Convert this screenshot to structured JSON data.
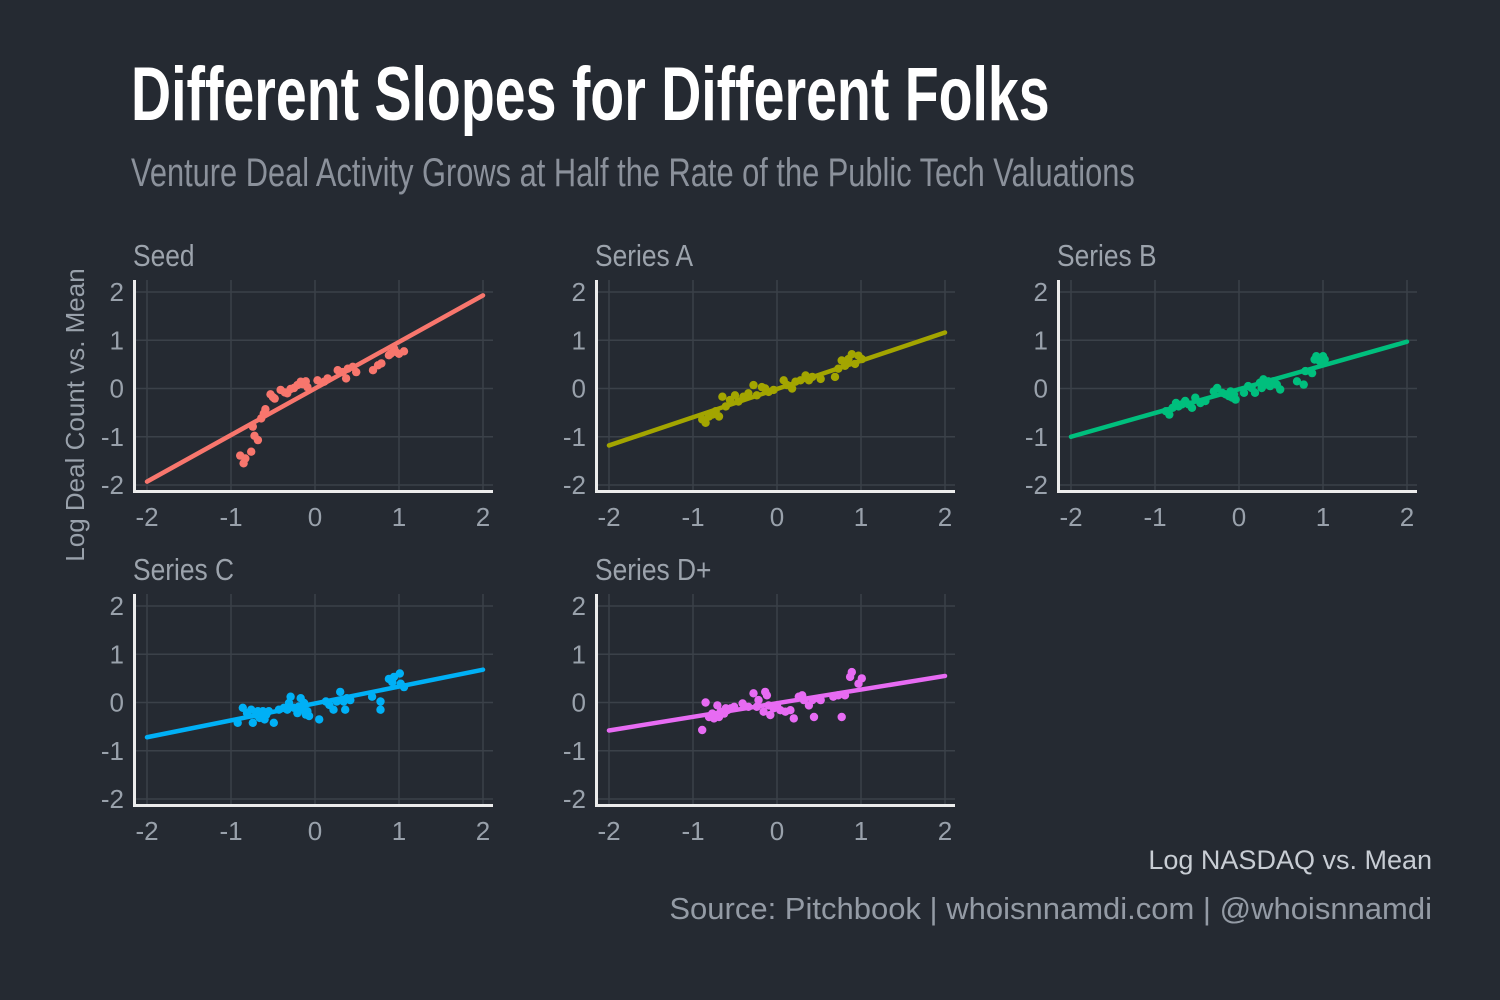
{
  "header": {
    "title": "Different Slopes for Different Folks",
    "subtitle": "Venture Deal Activity Grows at Half the Rate of the Public Tech Valuations"
  },
  "ylabel": "Log Deal Count vs. Mean",
  "footer": {
    "xlabel": "Log NASDAQ vs. Mean",
    "caption": "Source: Pitchbook | whoisnnamdi.com | @whoisnnamdi"
  },
  "theme": {
    "background": "#252A32",
    "grid": "#3B4149",
    "axis": "#ECECEC",
    "tick_label": "#99A1AB",
    "panel_title": "#9CA3AC",
    "title_color": "#FFFFFF",
    "subtitle_color": "#8B919B"
  },
  "chart_data": [
    {
      "type": "scatter",
      "name": "Seed",
      "color": "#F8766D",
      "xlim": [
        -2,
        2
      ],
      "ylim": [
        -2,
        2
      ],
      "xticks": [
        -2,
        -1,
        0,
        1,
        2
      ],
      "yticks": [
        -2,
        -1,
        0,
        1,
        2
      ],
      "grid": true,
      "line": [
        [
          -2,
          -1.93
        ],
        [
          2,
          1.93
        ]
      ],
      "points": [
        [
          -0.89,
          -1.39
        ],
        [
          -0.85,
          -1.55
        ],
        [
          -0.83,
          -1.45
        ],
        [
          -0.76,
          -1.31
        ],
        [
          -0.74,
          -0.79
        ],
        [
          -0.72,
          -0.98
        ],
        [
          -0.68,
          -1.07
        ],
        [
          -0.64,
          -0.62
        ],
        [
          -0.61,
          -0.52
        ],
        [
          -0.59,
          -0.43
        ],
        [
          -0.53,
          -0.12
        ],
        [
          -0.5,
          -0.18
        ],
        [
          -0.48,
          -0.21
        ],
        [
          -0.41,
          -0.03
        ],
        [
          -0.36,
          -0.08
        ],
        [
          -0.33,
          -0.1
        ],
        [
          -0.29,
          -0.01
        ],
        [
          -0.25,
          0.01
        ],
        [
          -0.21,
          0.07
        ],
        [
          -0.17,
          0.14
        ],
        [
          -0.15,
          0.09
        ],
        [
          -0.11,
          0.15
        ],
        [
          -0.09,
          0.03
        ],
        [
          0.03,
          0.17
        ],
        [
          0.11,
          0.14
        ],
        [
          0.15,
          0.21
        ],
        [
          0.27,
          0.38
        ],
        [
          0.33,
          0.34
        ],
        [
          0.37,
          0.21
        ],
        [
          0.39,
          0.41
        ],
        [
          0.45,
          0.45
        ],
        [
          0.49,
          0.34
        ],
        [
          0.69,
          0.38
        ],
        [
          0.75,
          0.48
        ],
        [
          0.79,
          0.52
        ],
        [
          0.88,
          0.69
        ],
        [
          0.9,
          0.72
        ],
        [
          0.94,
          0.83
        ],
        [
          0.96,
          0.76
        ],
        [
          1.0,
          0.72
        ],
        [
          1.06,
          0.77
        ]
      ]
    },
    {
      "type": "scatter",
      "name": "Series A",
      "color": "#A3A500",
      "xlim": [
        -2,
        2
      ],
      "ylim": [
        -2,
        2
      ],
      "xticks": [
        -2,
        -1,
        0,
        1,
        2
      ],
      "yticks": [
        -2,
        -1,
        0,
        1,
        2
      ],
      "grid": true,
      "line": [
        [
          -2,
          -1.18
        ],
        [
          2,
          1.16
        ]
      ],
      "points": [
        [
          -0.89,
          -0.64
        ],
        [
          -0.85,
          -0.71
        ],
        [
          -0.81,
          -0.58
        ],
        [
          -0.77,
          -0.54
        ],
        [
          -0.73,
          -0.47
        ],
        [
          -0.69,
          -0.58
        ],
        [
          -0.65,
          -0.17
        ],
        [
          -0.61,
          -0.37
        ],
        [
          -0.56,
          -0.24
        ],
        [
          -0.5,
          -0.14
        ],
        [
          -0.46,
          -0.27
        ],
        [
          -0.4,
          -0.17
        ],
        [
          -0.34,
          -0.1
        ],
        [
          -0.28,
          0.07
        ],
        [
          -0.24,
          -0.14
        ],
        [
          -0.18,
          0.03
        ],
        [
          -0.14,
          0.0
        ],
        [
          -0.1,
          -0.07
        ],
        [
          -0.04,
          -0.03
        ],
        [
          0.08,
          0.17
        ],
        [
          0.12,
          0.07
        ],
        [
          0.18,
          0.0
        ],
        [
          0.22,
          0.14
        ],
        [
          0.28,
          0.17
        ],
        [
          0.34,
          0.27
        ],
        [
          0.38,
          0.17
        ],
        [
          0.42,
          0.24
        ],
        [
          0.52,
          0.2
        ],
        [
          0.69,
          0.24
        ],
        [
          0.73,
          0.41
        ],
        [
          0.77,
          0.58
        ],
        [
          0.81,
          0.47
        ],
        [
          0.85,
          0.61
        ],
        [
          0.89,
          0.71
        ],
        [
          0.93,
          0.51
        ],
        [
          0.97,
          0.68
        ],
        [
          1.01,
          0.61
        ]
      ]
    },
    {
      "type": "scatter",
      "name": "Series B",
      "color": "#00BF7D",
      "xlim": [
        -2,
        2
      ],
      "ylim": [
        -2,
        2
      ],
      "xticks": [
        -2,
        -1,
        0,
        1,
        2
      ],
      "yticks": [
        -2,
        -1,
        0,
        1,
        2
      ],
      "grid": true,
      "line": [
        [
          -2,
          -1.0
        ],
        [
          2,
          0.97
        ]
      ],
      "points": [
        [
          -0.87,
          -0.47
        ],
        [
          -0.83,
          -0.54
        ],
        [
          -0.79,
          -0.4
        ],
        [
          -0.75,
          -0.3
        ],
        [
          -0.72,
          -0.37
        ],
        [
          -0.68,
          -0.33
        ],
        [
          -0.64,
          -0.26
        ],
        [
          -0.6,
          -0.33
        ],
        [
          -0.56,
          -0.4
        ],
        [
          -0.52,
          -0.19
        ],
        [
          -0.46,
          -0.3
        ],
        [
          -0.4,
          -0.26
        ],
        [
          -0.3,
          -0.06
        ],
        [
          -0.26,
          0.01
        ],
        [
          -0.2,
          -0.09
        ],
        [
          -0.16,
          -0.12
        ],
        [
          -0.12,
          -0.16
        ],
        [
          -0.1,
          -0.06
        ],
        [
          -0.08,
          -0.19
        ],
        [
          -0.06,
          -0.12
        ],
        [
          -0.04,
          -0.23
        ],
        [
          0.06,
          -0.09
        ],
        [
          0.11,
          0.05
        ],
        [
          0.15,
          0.01
        ],
        [
          0.19,
          -0.09
        ],
        [
          0.25,
          0.12
        ],
        [
          0.27,
          0.01
        ],
        [
          0.29,
          0.19
        ],
        [
          0.31,
          0.08
        ],
        [
          0.35,
          0.15
        ],
        [
          0.37,
          0.05
        ],
        [
          0.41,
          0.15
        ],
        [
          0.45,
          0.08
        ],
        [
          0.49,
          -0.02
        ],
        [
          0.69,
          0.15
        ],
        [
          0.77,
          0.08
        ],
        [
          0.79,
          0.36
        ],
        [
          0.87,
          0.32
        ],
        [
          0.9,
          0.6
        ],
        [
          0.92,
          0.67
        ],
        [
          0.96,
          0.57
        ],
        [
          1.0,
          0.67
        ],
        [
          1.02,
          0.6
        ]
      ]
    },
    {
      "type": "scatter",
      "name": "Series C",
      "color": "#00B0F6",
      "xlim": [
        -2,
        2
      ],
      "ylim": [
        -2,
        2
      ],
      "xticks": [
        -2,
        -1,
        0,
        1,
        2
      ],
      "yticks": [
        -2,
        -1,
        0,
        1,
        2
      ],
      "grid": true,
      "line": [
        [
          -2,
          -0.72
        ],
        [
          2,
          0.68
        ]
      ],
      "points": [
        [
          -0.92,
          -0.42
        ],
        [
          -0.86,
          -0.11
        ],
        [
          -0.81,
          -0.22
        ],
        [
          -0.76,
          -0.15
        ],
        [
          -0.74,
          -0.42
        ],
        [
          -0.7,
          -0.25
        ],
        [
          -0.68,
          -0.18
        ],
        [
          -0.66,
          -0.32
        ],
        [
          -0.64,
          -0.25
        ],
        [
          -0.62,
          -0.18
        ],
        [
          -0.6,
          -0.35
        ],
        [
          -0.58,
          -0.25
        ],
        [
          -0.55,
          -0.18
        ],
        [
          -0.49,
          -0.42
        ],
        [
          -0.43,
          -0.15
        ],
        [
          -0.37,
          -0.11
        ],
        [
          -0.33,
          -0.15
        ],
        [
          -0.31,
          -0.01
        ],
        [
          -0.29,
          0.12
        ],
        [
          -0.25,
          -0.11
        ],
        [
          -0.21,
          -0.22
        ],
        [
          -0.19,
          -0.08
        ],
        [
          -0.17,
          0.09
        ],
        [
          -0.15,
          -0.15
        ],
        [
          -0.13,
          -0.01
        ],
        [
          -0.11,
          -0.25
        ],
        [
          -0.09,
          -0.18
        ],
        [
          -0.07,
          -0.28
        ],
        [
          0.05,
          -0.35
        ],
        [
          0.13,
          0.02
        ],
        [
          0.17,
          -0.05
        ],
        [
          0.22,
          -0.15
        ],
        [
          0.26,
          0.02
        ],
        [
          0.3,
          0.22
        ],
        [
          0.34,
          0.02
        ],
        [
          0.36,
          -0.15
        ],
        [
          0.38,
          0.09
        ],
        [
          0.42,
          0.05
        ],
        [
          0.68,
          0.12
        ],
        [
          0.78,
          0.02
        ],
        [
          0.78,
          -0.15
        ],
        [
          0.88,
          0.49
        ],
        [
          0.92,
          0.42
        ],
        [
          0.94,
          0.53
        ],
        [
          1.01,
          0.6
        ],
        [
          1.02,
          0.39
        ],
        [
          1.06,
          0.32
        ]
      ]
    },
    {
      "type": "scatter",
      "name": "Series D+",
      "color": "#E76BF3",
      "xlim": [
        -2,
        2
      ],
      "ylim": [
        -2,
        2
      ],
      "xticks": [
        -2,
        -1,
        0,
        1,
        2
      ],
      "yticks": [
        -2,
        -1,
        0,
        1,
        2
      ],
      "grid": true,
      "line": [
        [
          -2,
          -0.58
        ],
        [
          2,
          0.55
        ]
      ],
      "points": [
        [
          -0.89,
          -0.57
        ],
        [
          -0.85,
          0.0
        ],
        [
          -0.81,
          -0.3
        ],
        [
          -0.77,
          -0.23
        ],
        [
          -0.75,
          -0.33
        ],
        [
          -0.71,
          -0.06
        ],
        [
          -0.69,
          -0.3
        ],
        [
          -0.67,
          -0.19
        ],
        [
          -0.63,
          -0.23
        ],
        [
          -0.61,
          -0.12
        ],
        [
          -0.59,
          -0.16
        ],
        [
          -0.55,
          -0.12
        ],
        [
          -0.51,
          -0.09
        ],
        [
          -0.41,
          -0.02
        ],
        [
          -0.34,
          -0.09
        ],
        [
          -0.28,
          0.19
        ],
        [
          -0.24,
          -0.09
        ],
        [
          -0.22,
          0.05
        ],
        [
          -0.16,
          -0.19
        ],
        [
          -0.14,
          0.22
        ],
        [
          -0.12,
          0.15
        ],
        [
          -0.1,
          -0.06
        ],
        [
          -0.08,
          -0.26
        ],
        [
          -0.04,
          -0.12
        ],
        [
          0.0,
          -0.06
        ],
        [
          0.04,
          -0.16
        ],
        [
          0.1,
          -0.19
        ],
        [
          0.16,
          -0.16
        ],
        [
          0.2,
          -0.33
        ],
        [
          0.26,
          0.12
        ],
        [
          0.3,
          0.15
        ],
        [
          0.32,
          0.05
        ],
        [
          0.38,
          -0.06
        ],
        [
          0.42,
          0.05
        ],
        [
          0.44,
          -0.3
        ],
        [
          0.5,
          0.08
        ],
        [
          0.52,
          0.05
        ],
        [
          0.67,
          0.12
        ],
        [
          0.73,
          0.15
        ],
        [
          0.77,
          -0.3
        ],
        [
          0.81,
          0.15
        ],
        [
          0.87,
          0.53
        ],
        [
          0.89,
          0.63
        ],
        [
          0.97,
          0.39
        ],
        [
          1.01,
          0.5
        ]
      ]
    }
  ]
}
